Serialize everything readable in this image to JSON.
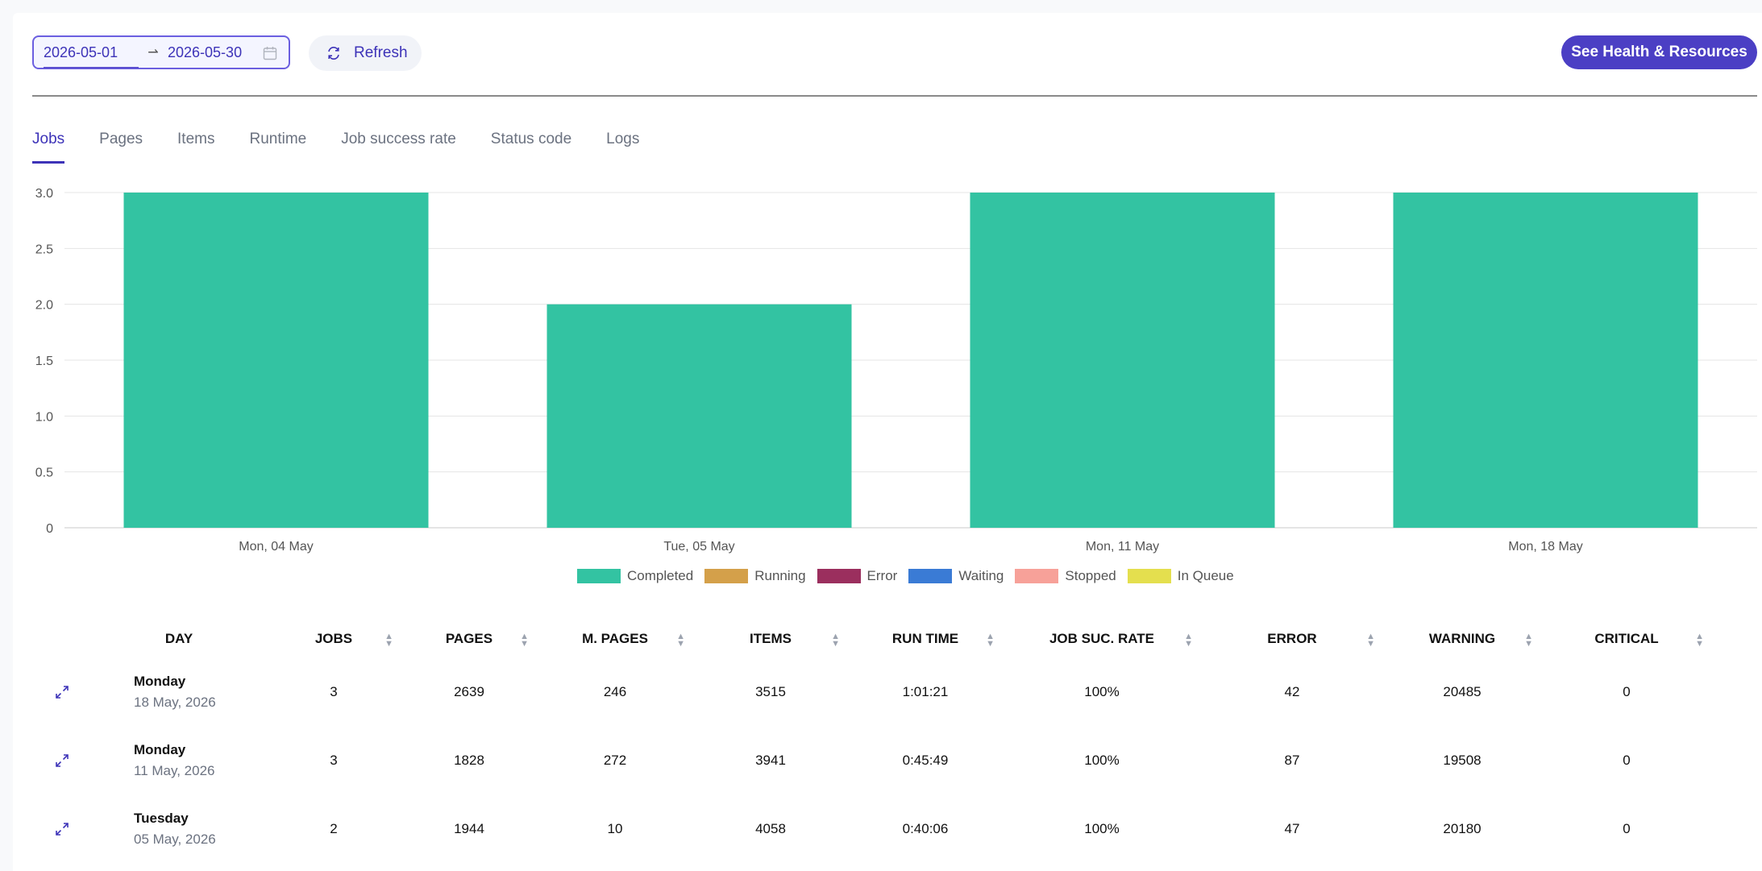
{
  "toolbar": {
    "date_start": "2026-05-01",
    "date_end": "2026-05-30",
    "refresh_label": "Refresh",
    "health_label": "See Health & Resources"
  },
  "tabs": [
    {
      "label": "Jobs",
      "active": true
    },
    {
      "label": "Pages"
    },
    {
      "label": "Items"
    },
    {
      "label": "Runtime"
    },
    {
      "label": "Job success rate"
    },
    {
      "label": "Status code"
    },
    {
      "label": "Logs"
    }
  ],
  "chart_data": {
    "type": "bar",
    "categories": [
      "Mon, 04 May",
      "Tue, 05 May",
      "Mon, 11 May",
      "Mon, 18 May"
    ],
    "series": [
      {
        "name": "Completed",
        "values": [
          3,
          2,
          3,
          3
        ],
        "color": "#33c3a2"
      },
      {
        "name": "Running",
        "values": [
          0,
          0,
          0,
          0
        ],
        "color": "#d4a04a"
      },
      {
        "name": "Error",
        "values": [
          0,
          0,
          0,
          0
        ],
        "color": "#9b2f5e"
      },
      {
        "name": "Waiting",
        "values": [
          0,
          0,
          0,
          0
        ],
        "color": "#3a7bd5"
      },
      {
        "name": "Stopped",
        "values": [
          0,
          0,
          0,
          0
        ],
        "color": "#f7a199"
      },
      {
        "name": "In Queue",
        "values": [
          0,
          0,
          0,
          0
        ],
        "color": "#e4df4e"
      }
    ],
    "y_ticks": [
      "0",
      "0.5",
      "1.0",
      "1.5",
      "2.0",
      "2.5",
      "3.0"
    ],
    "ylim": [
      0,
      3
    ],
    "stacked": true,
    "grid": true,
    "legend_position": "bottom"
  },
  "table": {
    "headers": [
      "DAY",
      "JOBS",
      "PAGES",
      "M. PAGES",
      "ITEMS",
      "RUN TIME",
      "JOB SUC. RATE",
      "ERROR",
      "WARNING",
      "CRITICAL"
    ],
    "rows": [
      {
        "day": "Monday",
        "date": "18 May, 2026",
        "jobs": "3",
        "pages": "2639",
        "m_pages": "246",
        "items": "3515",
        "runtime": "1:01:21",
        "rate": "100%",
        "error": "42",
        "warning": "20485",
        "critical": "0"
      },
      {
        "day": "Monday",
        "date": "11 May, 2026",
        "jobs": "3",
        "pages": "1828",
        "m_pages": "272",
        "items": "3941",
        "runtime": "0:45:49",
        "rate": "100%",
        "error": "87",
        "warning": "19508",
        "critical": "0"
      },
      {
        "day": "Tuesday",
        "date": "05 May, 2026",
        "jobs": "2",
        "pages": "1944",
        "m_pages": "10",
        "items": "4058",
        "runtime": "0:40:06",
        "rate": "100%",
        "error": "47",
        "warning": "20180",
        "critical": "0"
      }
    ]
  }
}
